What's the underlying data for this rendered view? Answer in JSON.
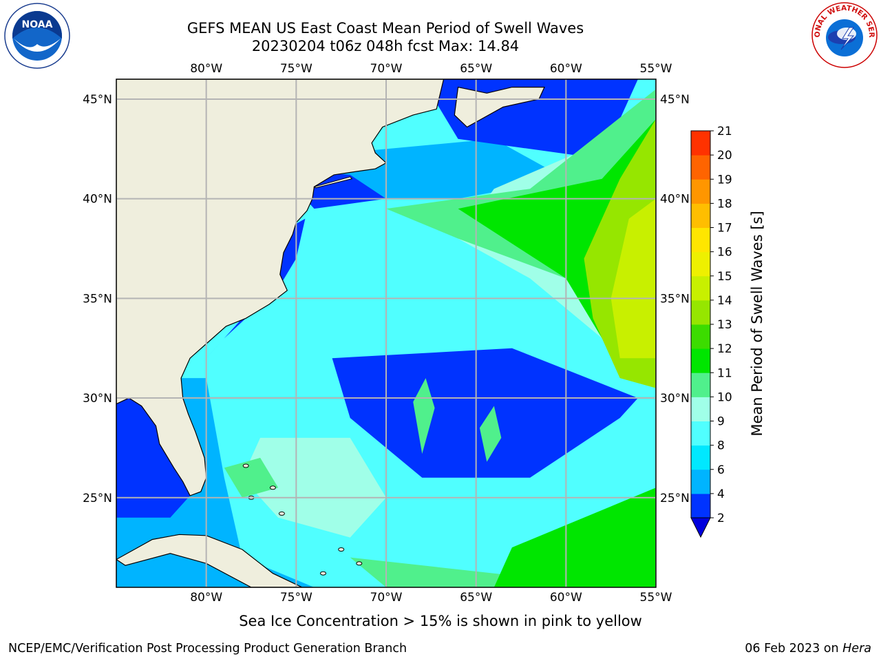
{
  "title": {
    "line1": "GEFS MEAN US East Coast Mean Period of Swell Waves",
    "line2": "20230204 t06z 048h fcst   Max: 14.84"
  },
  "logos": {
    "left": "noaa-logo",
    "right": "national-weather-service-logo",
    "left_text": "NOAA",
    "right_text": "NATIONAL WEATHER SERVICE"
  },
  "map": {
    "projection": "lat-lon",
    "lon_range": [
      -85,
      -55
    ],
    "lat_range": [
      20.5,
      46
    ],
    "lon_ticks": [
      "80°W",
      "75°W",
      "70°W",
      "65°W",
      "60°W",
      "55°W"
    ],
    "lat_ticks": [
      "45°N",
      "40°N",
      "35°N",
      "30°N",
      "25°N"
    ],
    "grid": true,
    "land_color": "#efeedd"
  },
  "colorbar": {
    "label": "Mean Period of Swell Waves [s]",
    "levels": [
      "2",
      "4",
      "6",
      "8",
      "9",
      "10",
      "11",
      "12",
      "13",
      "14",
      "15",
      "16",
      "17",
      "18",
      "19",
      "20",
      "21"
    ],
    "colors": [
      "#0033ff",
      "#00b4ff",
      "#00e8ff",
      "#50ffff",
      "#a0ffe8",
      "#50f08c",
      "#00e600",
      "#3cdc00",
      "#96e600",
      "#c8f000",
      "#eef000",
      "#ffe600",
      "#ffbe00",
      "#ff9600",
      "#ff6400",
      "#ff3200"
    ],
    "extend": "min",
    "under_color": "#0000dd"
  },
  "sea_ice_note": "Sea Ice Concentration > 15% is shown in pink to yellow",
  "footer": {
    "left": "NCEP/EMC/Verification Post Processing Product Generation Branch",
    "date": "06 Feb 2023 on ",
    "host": "Hera"
  }
}
